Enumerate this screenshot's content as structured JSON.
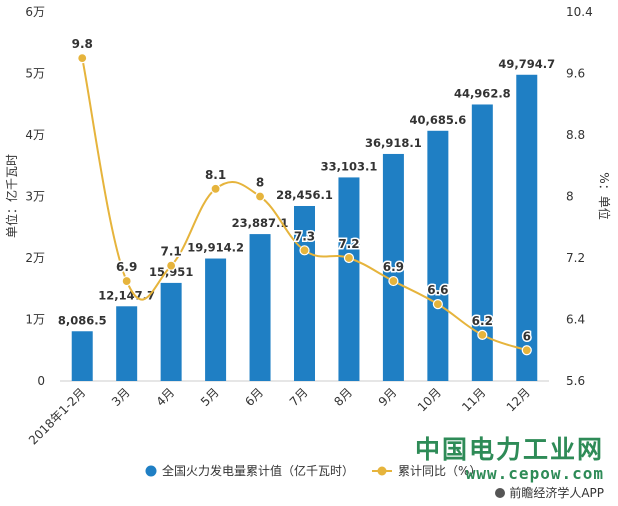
{
  "chart_data": {
    "type": "bar",
    "categories": [
      "2018年1-2月",
      "3月",
      "4月",
      "5月",
      "6月",
      "7月",
      "8月",
      "9月",
      "10月",
      "11月",
      "12月"
    ],
    "series": [
      {
        "name": "全国火力发电量累计值（亿千瓦时）",
        "type": "bar",
        "axis": "left",
        "color": "#1f7fc4",
        "values": [
          8086.5,
          12147.7,
          15951,
          19914.2,
          23887.1,
          28456.1,
          33103.1,
          36918.1,
          40685.6,
          44962.8,
          49794.7
        ],
        "labels": [
          "8,086.5",
          "12,147.7",
          "15,951",
          "19,914.2",
          "23,887.1",
          "28,456.1",
          "33,103.1",
          "36,918.1",
          "40,685.6",
          "44,962.8",
          "49,794.7"
        ]
      },
      {
        "name": "累计同比（%）",
        "type": "line",
        "axis": "right",
        "color": "#e6b43c",
        "values": [
          9.8,
          6.9,
          7.1,
          8.1,
          8,
          7.3,
          7.2,
          6.9,
          6.6,
          6.2,
          6
        ],
        "labels": [
          "9.8",
          "6.9",
          "7.1",
          "8.1",
          "8",
          "7.3",
          "7.2",
          "6.9",
          "6.6",
          "6.2",
          "6"
        ]
      }
    ],
    "ylabel": "单位：亿千瓦时",
    "y2label": "%：单位",
    "ylim": [
      0,
      60000
    ],
    "y2lim": [
      5.6,
      10.4
    ],
    "yticks": [
      0,
      10000,
      20000,
      30000,
      40000,
      50000,
      60000
    ],
    "yticklabels": [
      "0",
      "1万",
      "2万",
      "3万",
      "4万",
      "5万",
      "6万"
    ],
    "y2ticks": [
      5.6,
      6.4,
      7.2,
      8,
      8.8,
      9.6,
      10.4
    ],
    "y2ticklabels": [
      "5.6",
      "6.4",
      "7.2",
      "8",
      "8.8",
      "9.6",
      "10.4"
    ],
    "grid": false,
    "legend_position": "bottom"
  },
  "watermark": {
    "name": "中国电力工业网",
    "url": "www.cepow.com",
    "app": "前瞻经济学人APP"
  },
  "colors": {
    "bar": "#1f7fc4",
    "line": "#e6b43c",
    "text": "#333333",
    "watermark_green": "#2e8b57"
  }
}
